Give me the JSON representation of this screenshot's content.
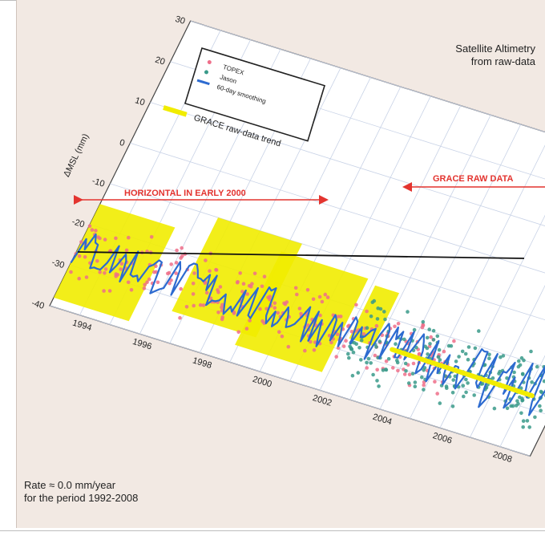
{
  "chart_data": {
    "type": "scatter",
    "title": "",
    "xlabel": "",
    "ylabel": "ΔMSL (mm)",
    "xlim": [
      1993,
      2009
    ],
    "ylim": [
      -40,
      30
    ],
    "x_ticks": [
      "1994",
      "1996",
      "1998",
      "2000",
      "2002",
      "2004",
      "2006",
      "2008"
    ],
    "y_ticks": [
      "30",
      "20",
      "10",
      "0",
      "-10",
      "-20",
      "-30",
      "-40"
    ],
    "grid": true,
    "legend_position": "top-left",
    "series": [
      {
        "name": "TOPEX",
        "color": "#ef6f8a",
        "marker": "dot",
        "x_range": [
          1993,
          2005.5
        ],
        "y_center": -26,
        "y_spread": 8
      },
      {
        "name": "Jason",
        "color": "#3a9a8a",
        "marker": "dot",
        "x_range": [
          2002.2,
          2008.7
        ],
        "y_center": -26,
        "y_spread": 10
      },
      {
        "name": "60-day smoothing",
        "color": "#2d6bd0",
        "marker": "line",
        "x_range": [
          1993,
          2008.7
        ],
        "y_center": -26,
        "y_spread": 5
      }
    ],
    "trend_line": {
      "color": "#111111",
      "x": [
        1993,
        2008.7
      ],
      "y": [
        -27,
        -27
      ]
    },
    "grace_trend": {
      "label": "GRACE raw-data trend",
      "color": "#f1ec00",
      "x": [
        2003.5,
        2008.2
      ],
      "y": [
        -26.5,
        -27
      ]
    },
    "grace_blocks": [
      {
        "x0": 1993.0,
        "x1": 1995.5,
        "y0": -38,
        "y1": -15
      },
      {
        "x0": 1996.6,
        "x1": 1999.4,
        "y0": -33,
        "y1": -10
      },
      {
        "x0": 1998.9,
        "x1": 2001.8,
        "y0": -36,
        "y1": -13
      },
      {
        "x0": 2002.1,
        "x1": 2002.9,
        "y0": -27,
        "y1": -14
      }
    ],
    "annotations": [
      {
        "text": "HORIZONTAL IN EARLY 2000",
        "color": "#e3342f"
      },
      {
        "text": "GRACE RAW DATA",
        "color": "#e3342f"
      }
    ]
  },
  "notes": {
    "top_right_line1": "Satellite Altimetry",
    "top_right_line2": "from raw-data",
    "bottom_left_line1": "Rate ≈ 0.0 mm/year",
    "bottom_left_line2": "for the period 1992-2008"
  },
  "legend": {
    "topex": "TOPEX",
    "jason": "Jason",
    "smooth": "60-day smoothing",
    "grace": "GRACE raw-data trend"
  },
  "annotations": {
    "horizontal": "HORIZONTAL IN EARLY 2000",
    "grace_raw": "GRACE RAW DATA"
  }
}
